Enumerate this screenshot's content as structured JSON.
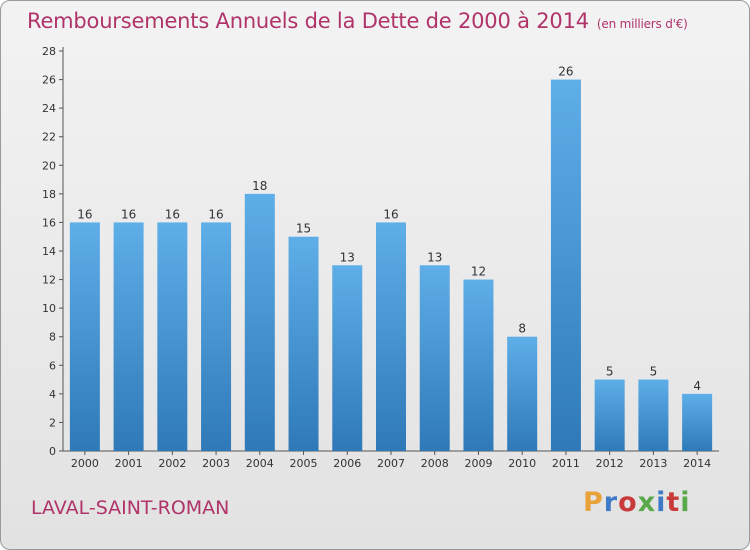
{
  "header": {
    "title": "Remboursements Annuels de la Dette de 2000 à 2014",
    "unit": "(en milliers d'€)"
  },
  "footer": {
    "town": "LAVAL-SAINT-ROMAN",
    "logo_text": "Proxiti",
    "logo_colors": [
      "#e8a23a",
      "#3f7ac9",
      "#c93b3b",
      "#59a84a",
      "#3f7ac9",
      "#c93b3b",
      "#59a84a"
    ]
  },
  "colors": {
    "accent": "#b0336a",
    "bar_top": "#5eaee8",
    "bar_bottom": "#2f79b8"
  },
  "chart_data": {
    "type": "bar",
    "title": "Remboursements Annuels de la Dette de 2000 à 2014",
    "xlabel": "",
    "ylabel": "",
    "categories": [
      "2000",
      "2001",
      "2002",
      "2003",
      "2004",
      "2005",
      "2006",
      "2007",
      "2008",
      "2009",
      "2010",
      "2011",
      "2012",
      "2013",
      "2014"
    ],
    "values": [
      16,
      16,
      16,
      16,
      18,
      15,
      13,
      16,
      13,
      12,
      8,
      26,
      5,
      5,
      4
    ],
    "ylim": [
      0,
      28
    ],
    "yticks": [
      0,
      2,
      4,
      6,
      8,
      10,
      12,
      14,
      16,
      18,
      20,
      22,
      24,
      26,
      28
    ],
    "grid": false,
    "legend": "none"
  }
}
